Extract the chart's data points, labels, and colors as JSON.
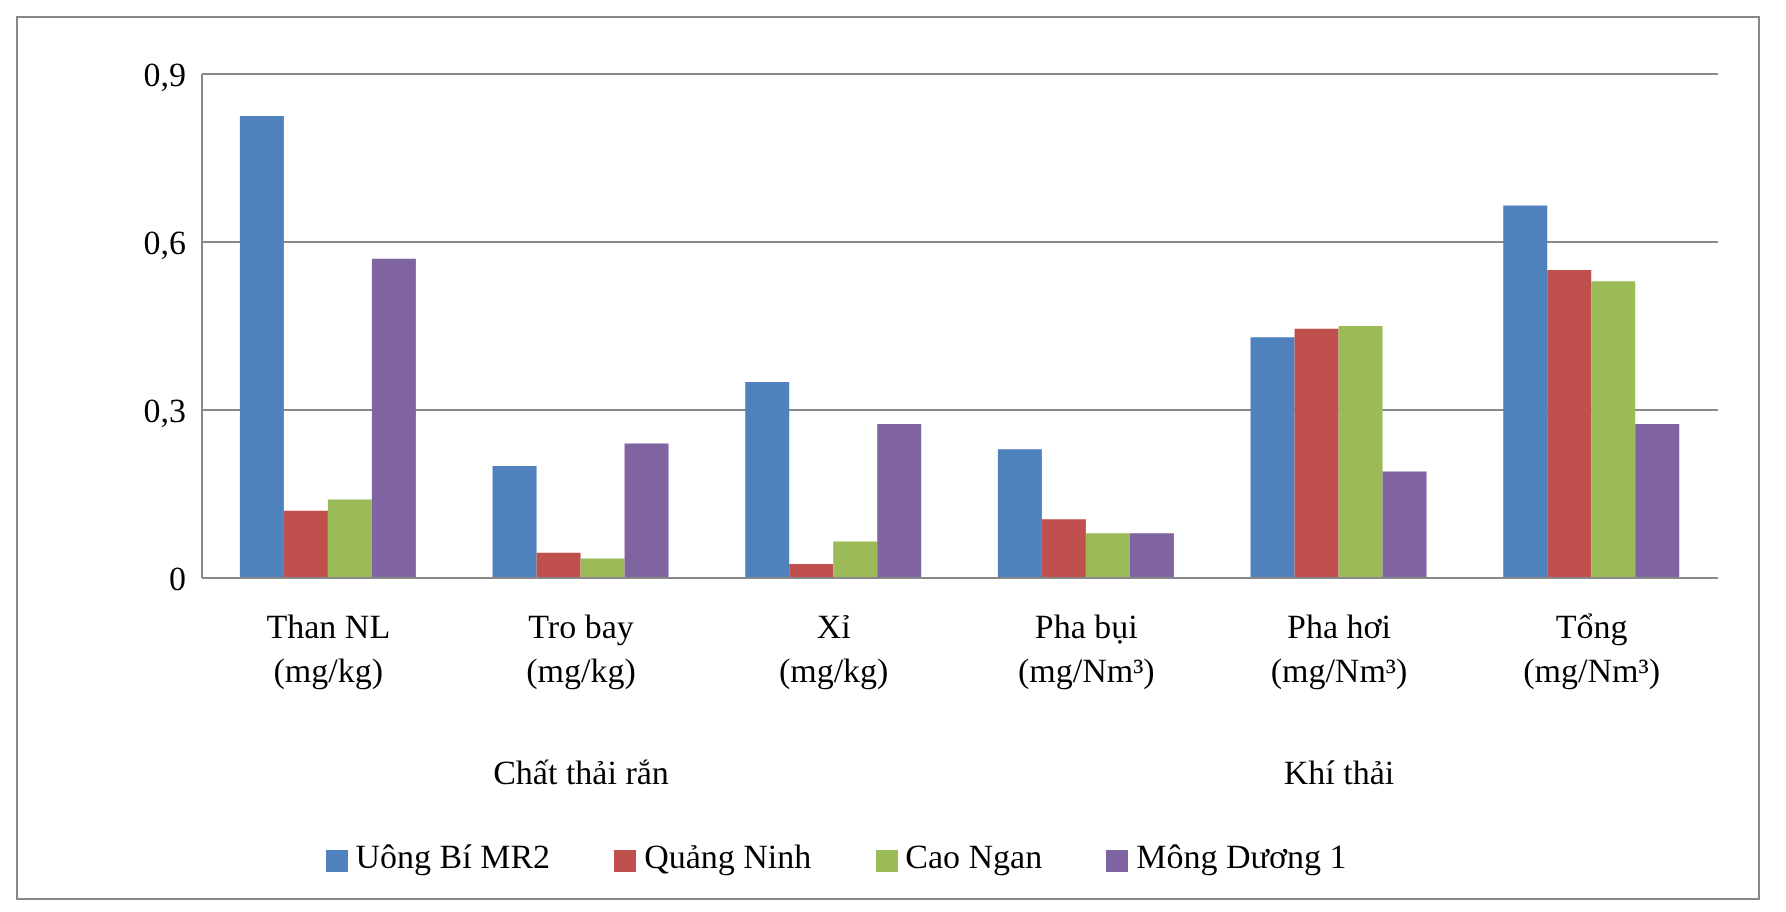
{
  "chart_data": {
    "type": "bar",
    "categories": [
      "Than NL\n(mg/kg)",
      "Tro bay\n(mg/kg)",
      "Xỉ\n(mg/kg)",
      "Pha bụi\n(mg/Nm³)",
      "Pha hơi\n(mg/Nm³)",
      "Tổng\n(mg/Nm³)"
    ],
    "series": [
      {
        "name": "Uông Bí MR2",
        "color": "#4f81bd",
        "values": [
          0.825,
          0.2,
          0.35,
          0.23,
          0.43,
          0.665
        ]
      },
      {
        "name": "Quảng Ninh",
        "color": "#c0504d",
        "values": [
          0.12,
          0.045,
          0.025,
          0.105,
          0.445,
          0.55
        ]
      },
      {
        "name": "Cao Ngan",
        "color": "#9bbb59",
        "values": [
          0.14,
          0.035,
          0.065,
          0.08,
          0.45,
          0.53
        ]
      },
      {
        "name": "Mông Dương 1",
        "color": "#8064a2",
        "values": [
          0.57,
          0.24,
          0.275,
          0.08,
          0.19,
          0.275
        ]
      }
    ],
    "ylim": [
      0,
      0.9
    ],
    "yticks": [
      0,
      {
        "value": 0.3,
        "label": "0,3"
      },
      {
        "value": 0.6,
        "label": "0,6"
      },
      {
        "value": 0.9,
        "label": "0,9"
      }
    ],
    "grid": "y",
    "legend": "bottom",
    "annotations": [
      "Chất thải rắn",
      "Khí thải"
    ]
  }
}
